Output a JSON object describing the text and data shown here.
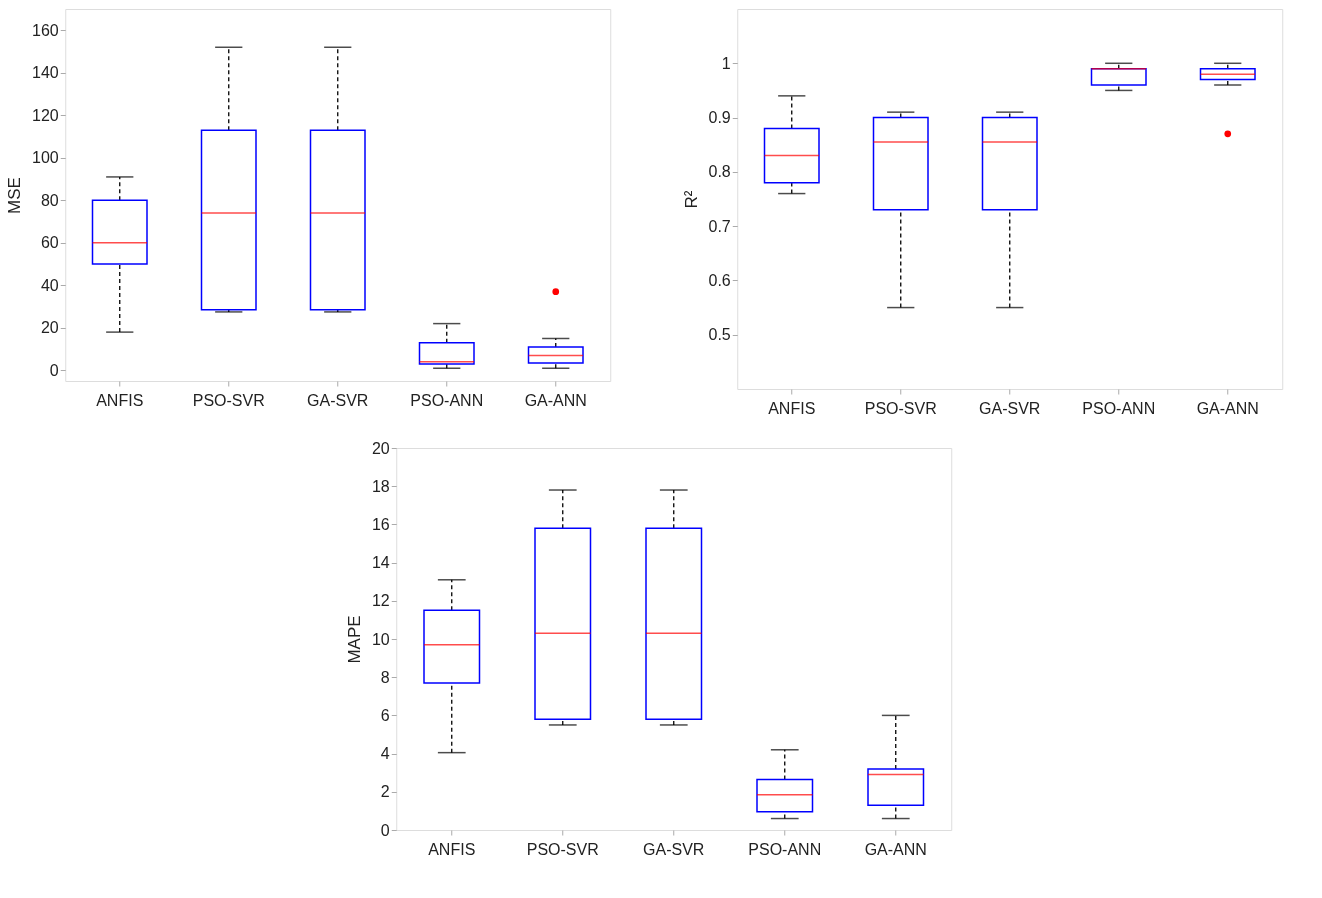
{
  "chart_data": [
    {
      "type": "box",
      "ylabel": "MSE",
      "categories": [
        "ANFIS",
        "PSO-SVR",
        "GA-SVR",
        "PSO-ANN",
        "GA-ANN"
      ],
      "ylim": [
        -5,
        170
      ],
      "yticks": [
        0,
        20,
        40,
        60,
        80,
        100,
        120,
        140,
        160
      ],
      "grid": false,
      "boxes": [
        {
          "low": 18,
          "q1": 50,
          "median": 60,
          "q3": 80,
          "high": 91
        },
        {
          "low": 27.5,
          "q1": 28.5,
          "median": 74,
          "q3": 113,
          "high": 152
        },
        {
          "low": 27.5,
          "q1": 28.5,
          "median": 74,
          "q3": 113,
          "high": 152
        },
        {
          "low": 1,
          "q1": 3,
          "median": 4,
          "q3": 13,
          "high": 22
        },
        {
          "low": 1,
          "q1": 3.5,
          "median": 7,
          "q3": 11,
          "high": 15,
          "outliers": [
            37
          ]
        }
      ]
    },
    {
      "type": "box",
      "ylabel": "R²",
      "categories": [
        "ANFIS",
        "PSO-SVR",
        "GA-SVR",
        "PSO-ANN",
        "GA-ANN"
      ],
      "ylim": [
        0.4,
        1.1
      ],
      "yticks": [
        0.5,
        0.6,
        0.7,
        0.8,
        0.9,
        1
      ],
      "grid": false,
      "boxes": [
        {
          "low": 0.76,
          "q1": 0.78,
          "median": 0.83,
          "q3": 0.88,
          "high": 0.94
        },
        {
          "low": 0.55,
          "q1": 0.73,
          "median": 0.855,
          "q3": 0.9,
          "high": 0.91
        },
        {
          "low": 0.55,
          "q1": 0.73,
          "median": 0.855,
          "q3": 0.9,
          "high": 0.91
        },
        {
          "low": 0.95,
          "q1": 0.96,
          "median": 0.99,
          "q3": 0.99,
          "high": 1.0
        },
        {
          "low": 0.96,
          "q1": 0.97,
          "median": 0.98,
          "q3": 0.99,
          "high": 1.0,
          "outliers": [
            0.87
          ]
        }
      ]
    },
    {
      "type": "box",
      "ylabel": "MAPE",
      "categories": [
        "ANFIS",
        "PSO-SVR",
        "GA-SVR",
        "PSO-ANN",
        "GA-ANN"
      ],
      "ylim": [
        0,
        20
      ],
      "yticks": [
        0,
        2,
        4,
        6,
        8,
        10,
        12,
        14,
        16,
        18,
        20
      ],
      "grid": false,
      "boxes": [
        {
          "low": 4.05,
          "q1": 7.7,
          "median": 9.7,
          "q3": 11.5,
          "high": 13.1
        },
        {
          "low": 5.5,
          "q1": 5.8,
          "median": 10.3,
          "q3": 15.8,
          "high": 17.8
        },
        {
          "low": 5.5,
          "q1": 5.8,
          "median": 10.3,
          "q3": 15.8,
          "high": 17.8
        },
        {
          "low": 0.6,
          "q1": 0.95,
          "median": 1.85,
          "q3": 2.65,
          "high": 4.2
        },
        {
          "low": 0.6,
          "q1": 1.3,
          "median": 2.9,
          "q3": 3.2,
          "high": 6.0
        }
      ]
    }
  ]
}
